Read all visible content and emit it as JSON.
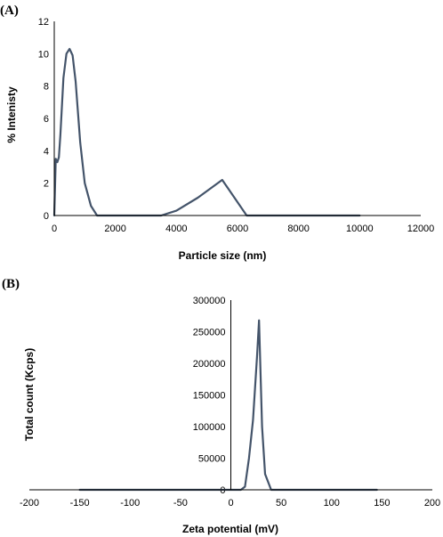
{
  "chart_data": [
    {
      "panel": "(A)",
      "type": "line",
      "xlabel": "Particle size (nm)",
      "ylabel": "% Intenisty",
      "xlim": [
        0,
        12000
      ],
      "ylim": [
        0,
        12
      ],
      "xticks": [
        0,
        2000,
        4000,
        6000,
        8000,
        10000,
        12000
      ],
      "yticks": [
        0,
        2,
        4,
        6,
        8,
        10,
        12
      ],
      "grid": false,
      "series": [
        {
          "color": "#44546a",
          "x": [
            0,
            50,
            100,
            150,
            200,
            300,
            400,
            500,
            600,
            700,
            850,
            1000,
            1200,
            1400,
            2000,
            3500,
            4000,
            4700,
            5500,
            6300,
            7000,
            8000,
            10000
          ],
          "y": [
            0,
            3.5,
            3.3,
            3.6,
            5,
            8.5,
            10,
            10.3,
            9.9,
            8.3,
            4.5,
            2,
            0.6,
            0,
            0,
            0,
            0.3,
            1.1,
            2.2,
            0,
            0,
            0,
            0
          ]
        }
      ]
    },
    {
      "panel": "(B)",
      "type": "line",
      "xlabel": "Zeta potential (mV)",
      "ylabel": "Total count (Kcps)",
      "xlim": [
        -200,
        200
      ],
      "ylim": [
        0,
        300000
      ],
      "xticks": [
        -200,
        -150,
        -100,
        -50,
        0,
        50,
        100,
        150,
        200
      ],
      "yticks": [
        0,
        50000,
        100000,
        150000,
        200000,
        250000,
        300000
      ],
      "grid": false,
      "series": [
        {
          "color": "#44546a",
          "x": [
            -150,
            -100,
            0,
            10,
            14,
            18,
            22,
            26,
            28,
            31,
            34,
            40,
            100,
            145
          ],
          "y": [
            0,
            0,
            0,
            0,
            5000,
            50000,
            110000,
            210000,
            268000,
            100000,
            25000,
            0,
            0,
            0
          ]
        }
      ]
    }
  ]
}
